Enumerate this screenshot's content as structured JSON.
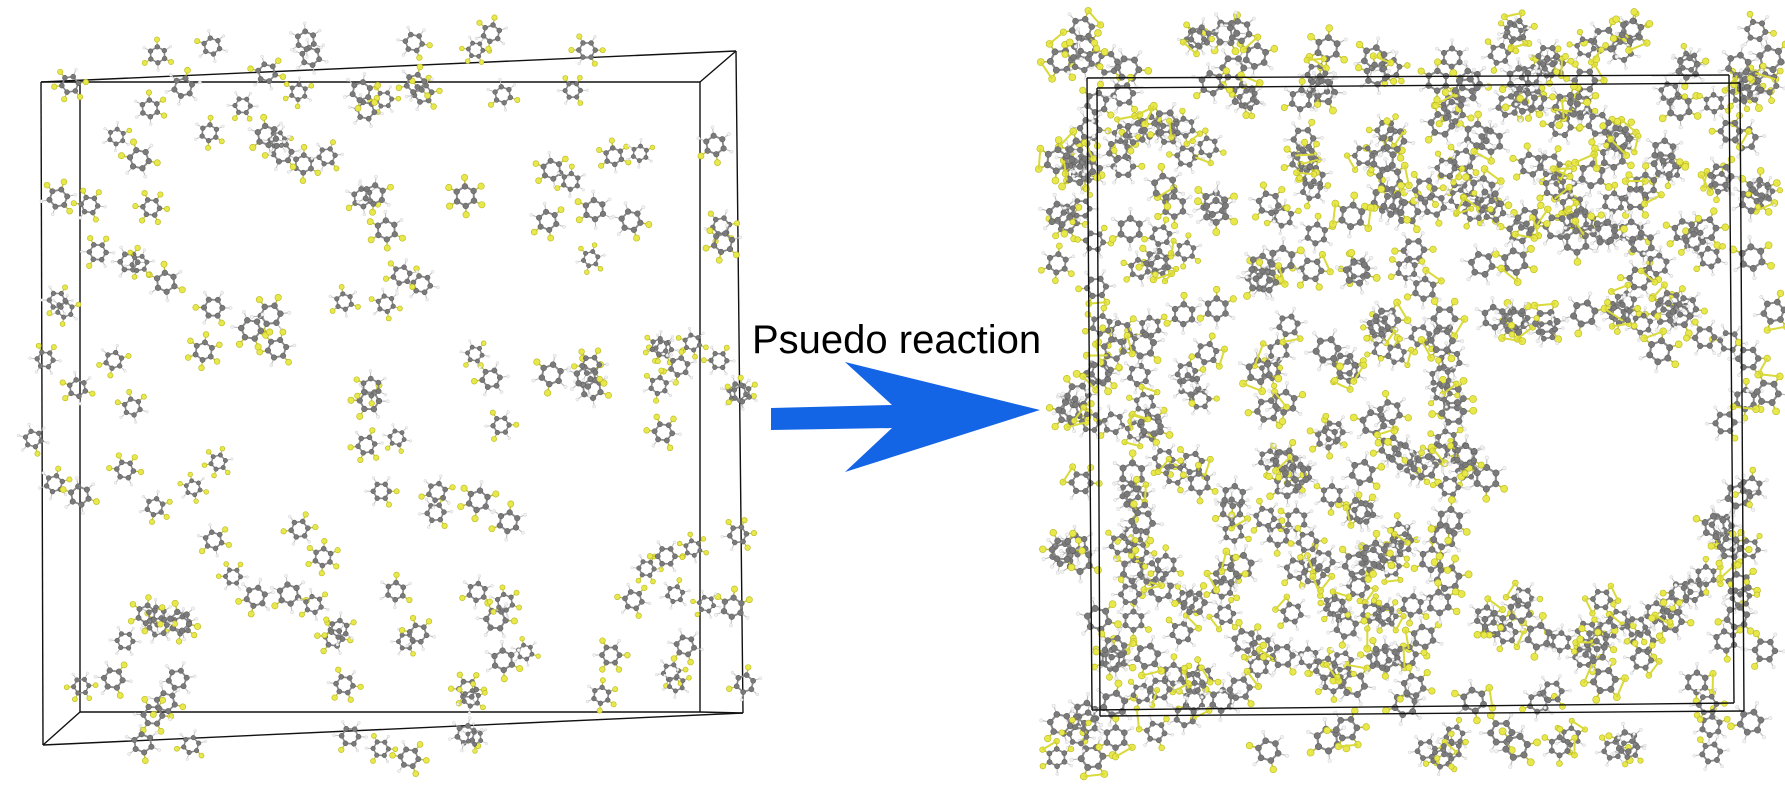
{
  "caption": "Psuedo reaction",
  "colors": {
    "carbon": "#7a7a7a",
    "sulfur": "#e8e84a",
    "hydrogen": "#f2f2f2",
    "arrow": "#1464e6",
    "box": "#111111"
  },
  "panels": {
    "before": {
      "state": "dispersed molecules"
    },
    "after": {
      "state": "cross-linked network"
    }
  }
}
